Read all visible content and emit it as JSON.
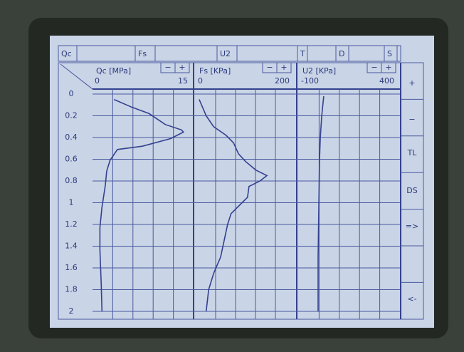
{
  "ui": {
    "tabs": [
      "Qc",
      "Fs",
      "U2",
      "T",
      "D",
      "S"
    ],
    "panel_buttons": [
      "−",
      "+"
    ],
    "side_buttons": [
      "+",
      "−",
      "TL",
      "DS",
      "=>",
      "<-"
    ]
  },
  "chart_data": [
    {
      "type": "line",
      "title": "Qc [MPa]",
      "color": "#34418f",
      "grid": true,
      "x": [
        0.05,
        0.12,
        0.18,
        0.28,
        0.33,
        0.35,
        0.41,
        0.48,
        0.51,
        0.61,
        0.71,
        0.84,
        1.04,
        1.23,
        1.43,
        1.76,
        2.0
      ],
      "values": [
        3.2,
        5.8,
        8.4,
        10.8,
        13.2,
        13.5,
        11.6,
        7.4,
        3.7,
        2.6,
        2.1,
        1.9,
        1.4,
        1.1,
        1.1,
        1.3,
        1.4
      ],
      "xlim": [
        0,
        2
      ],
      "xticks": [
        0,
        0.2,
        0.4,
        0.6,
        0.8,
        1,
        1.2,
        1.4,
        1.6,
        1.8,
        2
      ],
      "ylim": [
        0,
        15
      ]
    },
    {
      "type": "line",
      "title": "Fs [KPa]",
      "color": "#34418f",
      "grid": true,
      "x": [
        0.05,
        0.2,
        0.3,
        0.38,
        0.45,
        0.55,
        0.62,
        0.7,
        0.75,
        0.8,
        0.85,
        0.95,
        1.0,
        1.1,
        1.2,
        1.35,
        1.5,
        1.65,
        1.8,
        2.0
      ],
      "values": [
        7,
        21,
        36,
        61,
        76,
        86,
        100,
        121,
        143,
        129,
        107,
        104,
        93,
        71,
        64,
        57,
        50,
        36,
        26,
        21
      ],
      "ylim": [
        0,
        200
      ]
    },
    {
      "type": "line",
      "title": "U2 [KPa]",
      "color": "#34418f",
      "grid": true,
      "x": [
        0.02,
        0.2,
        0.4,
        0.6,
        1.0,
        1.5,
        2.0
      ],
      "values": [
        23,
        13,
        6,
        2,
        -1,
        -5,
        -5
      ],
      "ylim": [
        -100,
        400
      ]
    }
  ]
}
